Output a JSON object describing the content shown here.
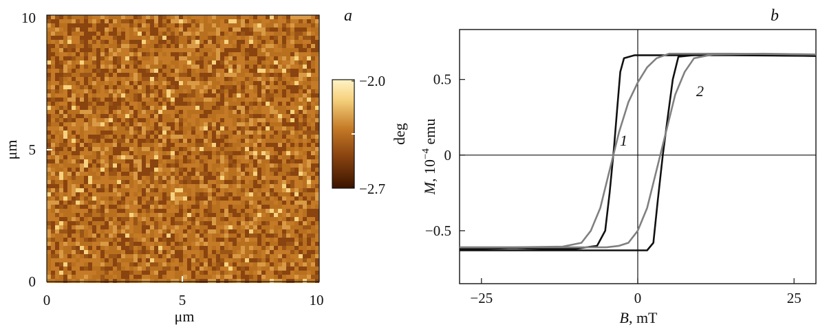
{
  "panels": {
    "a": {
      "label": "a"
    },
    "b": {
      "label": "b"
    }
  },
  "chart_data": [
    {
      "type": "heatmap",
      "panel": "a",
      "xlabel": "μm",
      "ylabel": "μm",
      "xlim": [
        0,
        10
      ],
      "ylim": [
        0,
        10
      ],
      "x_ticks": [
        "0",
        "5",
        "10"
      ],
      "y_ticks": [
        "0",
        "5",
        "10"
      ],
      "colorbar": {
        "label": "deg",
        "min": -2.7,
        "max": -2.0,
        "tick_labels": [
          "−2.0",
          "−2.7"
        ],
        "colors": [
          "#3a1400",
          "#8a4410",
          "#c47a26",
          "#f6d27e",
          "#fff3c6"
        ]
      },
      "description_colors": {
        "mean": "#b06a1e"
      }
    },
    {
      "type": "line",
      "panel": "b",
      "xlabel": {
        "var": "B",
        "unit": ", mT"
      },
      "ylabel": {
        "var": "M",
        "unit": ", 10",
        "exp": "−4",
        "tail": " emu"
      },
      "xlim": [
        -28.5,
        28.5
      ],
      "ylim": [
        -0.85,
        0.83
      ],
      "x_ticks": [
        -25,
        0,
        25
      ],
      "x_tick_labels": [
        "−25",
        "0",
        "25"
      ],
      "y_ticks": [
        -0.5,
        0,
        0.5
      ],
      "y_tick_labels": [
        "−0.5",
        "0",
        "0.5"
      ],
      "reference_lines": {
        "x": 0,
        "y": 0
      },
      "curve_labels": [
        "1",
        "2"
      ],
      "series": [
        {
          "color": "#111111",
          "branches": [
            [
              [
                -28.5,
                -0.62
              ],
              [
                -25,
                -0.62
              ],
              [
                -20,
                -0.615
              ],
              [
                -15,
                -0.62
              ],
              [
                -10,
                -0.62
              ],
              [
                -6.5,
                -0.6
              ],
              [
                -5.2,
                -0.5
              ],
              [
                -4.5,
                -0.25
              ],
              [
                -3.8,
                0.05
              ],
              [
                -3.3,
                0.3
              ],
              [
                -2.8,
                0.55
              ],
              [
                -2.2,
                0.64
              ],
              [
                -0.5,
                0.66
              ],
              [
                5,
                0.66
              ],
              [
                15,
                0.66
              ],
              [
                28.5,
                0.655
              ]
            ],
            [
              [
                28.5,
                0.655
              ],
              [
                20,
                0.66
              ],
              [
                10,
                0.665
              ],
              [
                6.5,
                0.65
              ],
              [
                5.6,
                0.5
              ],
              [
                4.8,
                0.25
              ],
              [
                4.0,
                0.0
              ],
              [
                3.2,
                -0.3
              ],
              [
                2.5,
                -0.58
              ],
              [
                1.5,
                -0.63
              ],
              [
                0,
                -0.63
              ],
              [
                -10,
                -0.63
              ],
              [
                -28.5,
                -0.63
              ]
            ]
          ]
        },
        {
          "color": "#808080",
          "branches": [
            [
              [
                -28.5,
                -0.61
              ],
              [
                -20,
                -0.61
              ],
              [
                -12,
                -0.605
              ],
              [
                -9,
                -0.58
              ],
              [
                -7.5,
                -0.5
              ],
              [
                -6,
                -0.35
              ],
              [
                -4.5,
                -0.1
              ],
              [
                -3,
                0.15
              ],
              [
                -1.5,
                0.35
              ],
              [
                0,
                0.48
              ],
              [
                1.5,
                0.58
              ],
              [
                3,
                0.64
              ],
              [
                5,
                0.67
              ],
              [
                8,
                0.67
              ],
              [
                15,
                0.67
              ],
              [
                28.5,
                0.665
              ]
            ],
            [
              [
                28.5,
                0.665
              ],
              [
                20,
                0.67
              ],
              [
                12,
                0.665
              ],
              [
                9,
                0.64
              ],
              [
                7.5,
                0.55
              ],
              [
                6,
                0.4
              ],
              [
                4.5,
                0.15
              ],
              [
                3,
                -0.1
              ],
              [
                1.5,
                -0.35
              ],
              [
                0,
                -0.5
              ],
              [
                -1.5,
                -0.58
              ],
              [
                -3,
                -0.6
              ],
              [
                -5,
                -0.61
              ],
              [
                -15,
                -0.61
              ],
              [
                -28.5,
                -0.61
              ]
            ]
          ]
        }
      ]
    }
  ]
}
